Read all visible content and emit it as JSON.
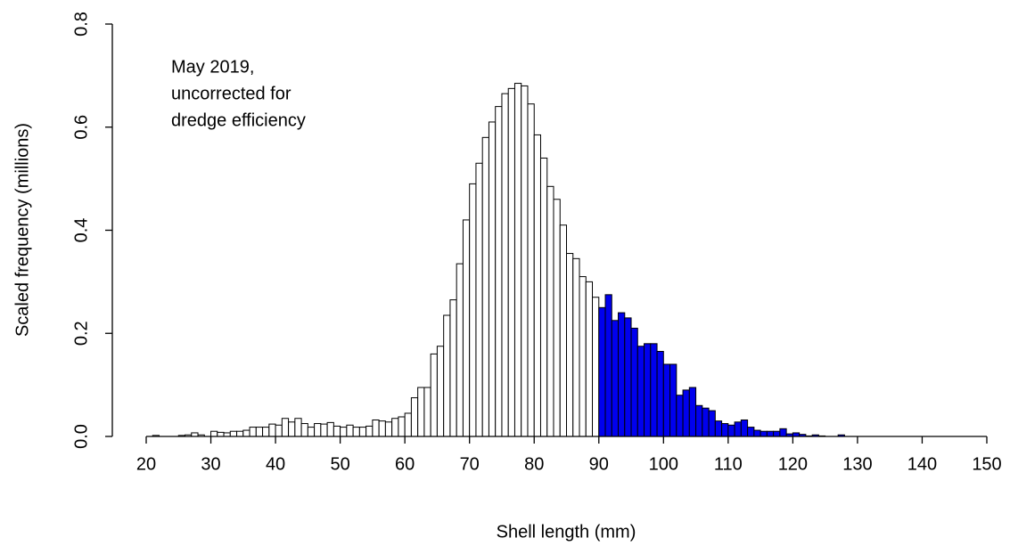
{
  "chart_data": {
    "type": "histogram",
    "annotation": [
      "May 2019,",
      "uncorrected for",
      "dredge efficiency"
    ],
    "xlabel": "Shell length (mm)",
    "ylabel": "Scaled frequency (millions)",
    "bins": [
      20,
      21,
      22,
      23,
      24,
      25,
      26,
      27,
      28,
      29,
      30,
      31,
      32,
      33,
      34,
      35,
      36,
      37,
      38,
      39,
      40,
      41,
      42,
      43,
      44,
      45,
      46,
      47,
      48,
      49,
      50,
      51,
      52,
      53,
      54,
      55,
      56,
      57,
      58,
      59,
      60,
      61,
      62,
      63,
      64,
      65,
      66,
      67,
      68,
      69,
      70,
      71,
      72,
      73,
      74,
      75,
      76,
      77,
      78,
      79,
      80,
      81,
      82,
      83,
      84,
      85,
      86,
      87,
      88,
      89,
      90,
      91,
      92,
      93,
      94,
      95,
      96,
      97,
      98,
      99,
      100,
      101,
      102,
      103,
      104,
      105,
      106,
      107,
      108,
      109,
      110,
      111,
      112,
      113,
      114,
      115,
      116,
      117,
      118,
      119,
      120,
      121,
      122,
      123,
      124,
      125,
      126,
      127,
      128,
      129,
      130,
      131,
      132,
      133,
      134,
      135,
      136,
      137,
      138,
      139,
      140,
      141,
      142,
      143,
      144,
      145,
      146,
      147,
      148,
      149,
      150
    ],
    "values": [
      0,
      0.002,
      0,
      0,
      0,
      0.002,
      0.003,
      0.007,
      0.003,
      0,
      0.01,
      0.008,
      0.007,
      0.01,
      0.01,
      0.012,
      0.018,
      0.018,
      0.018,
      0.024,
      0.022,
      0.035,
      0.028,
      0.035,
      0.025,
      0.018,
      0.025,
      0.024,
      0.027,
      0.02,
      0.018,
      0.022,
      0.018,
      0.018,
      0.02,
      0.032,
      0.03,
      0.028,
      0.035,
      0.038,
      0.045,
      0.075,
      0.095,
      0.095,
      0.16,
      0.175,
      0.235,
      0.265,
      0.335,
      0.42,
      0.49,
      0.53,
      0.58,
      0.61,
      0.64,
      0.665,
      0.675,
      0.685,
      0.68,
      0.645,
      0.585,
      0.54,
      0.485,
      0.46,
      0.41,
      0.355,
      0.345,
      0.31,
      0.3,
      0.27,
      0.25,
      0.275,
      0.225,
      0.24,
      0.23,
      0.21,
      0.175,
      0.18,
      0.18,
      0.165,
      0.14,
      0.14,
      0.08,
      0.09,
      0.095,
      0.06,
      0.055,
      0.05,
      0.03,
      0.025,
      0.022,
      0.028,
      0.032,
      0.018,
      0.012,
      0.01,
      0.01,
      0.01,
      0.015,
      0.005,
      0.007,
      0.004,
      0.001,
      0.003,
      0.001,
      0,
      0,
      0.003,
      0,
      0,
      0,
      0,
      0,
      0,
      0,
      0,
      0,
      0,
      0,
      0,
      0,
      0,
      0,
      0,
      0,
      0,
      0,
      0,
      0,
      0
    ],
    "color": "#ffffff",
    "highlight_color": "#0000ee",
    "highlight_from": 90,
    "xlim": [
      20,
      150
    ],
    "xticks": [
      20,
      30,
      40,
      50,
      60,
      70,
      80,
      90,
      100,
      110,
      120,
      130,
      140,
      150
    ],
    "ylim": [
      0,
      0.8
    ],
    "yticks": [
      {
        "value": 0,
        "label": "0.0"
      },
      0.2,
      0.4,
      0.6,
      0.8
    ]
  }
}
